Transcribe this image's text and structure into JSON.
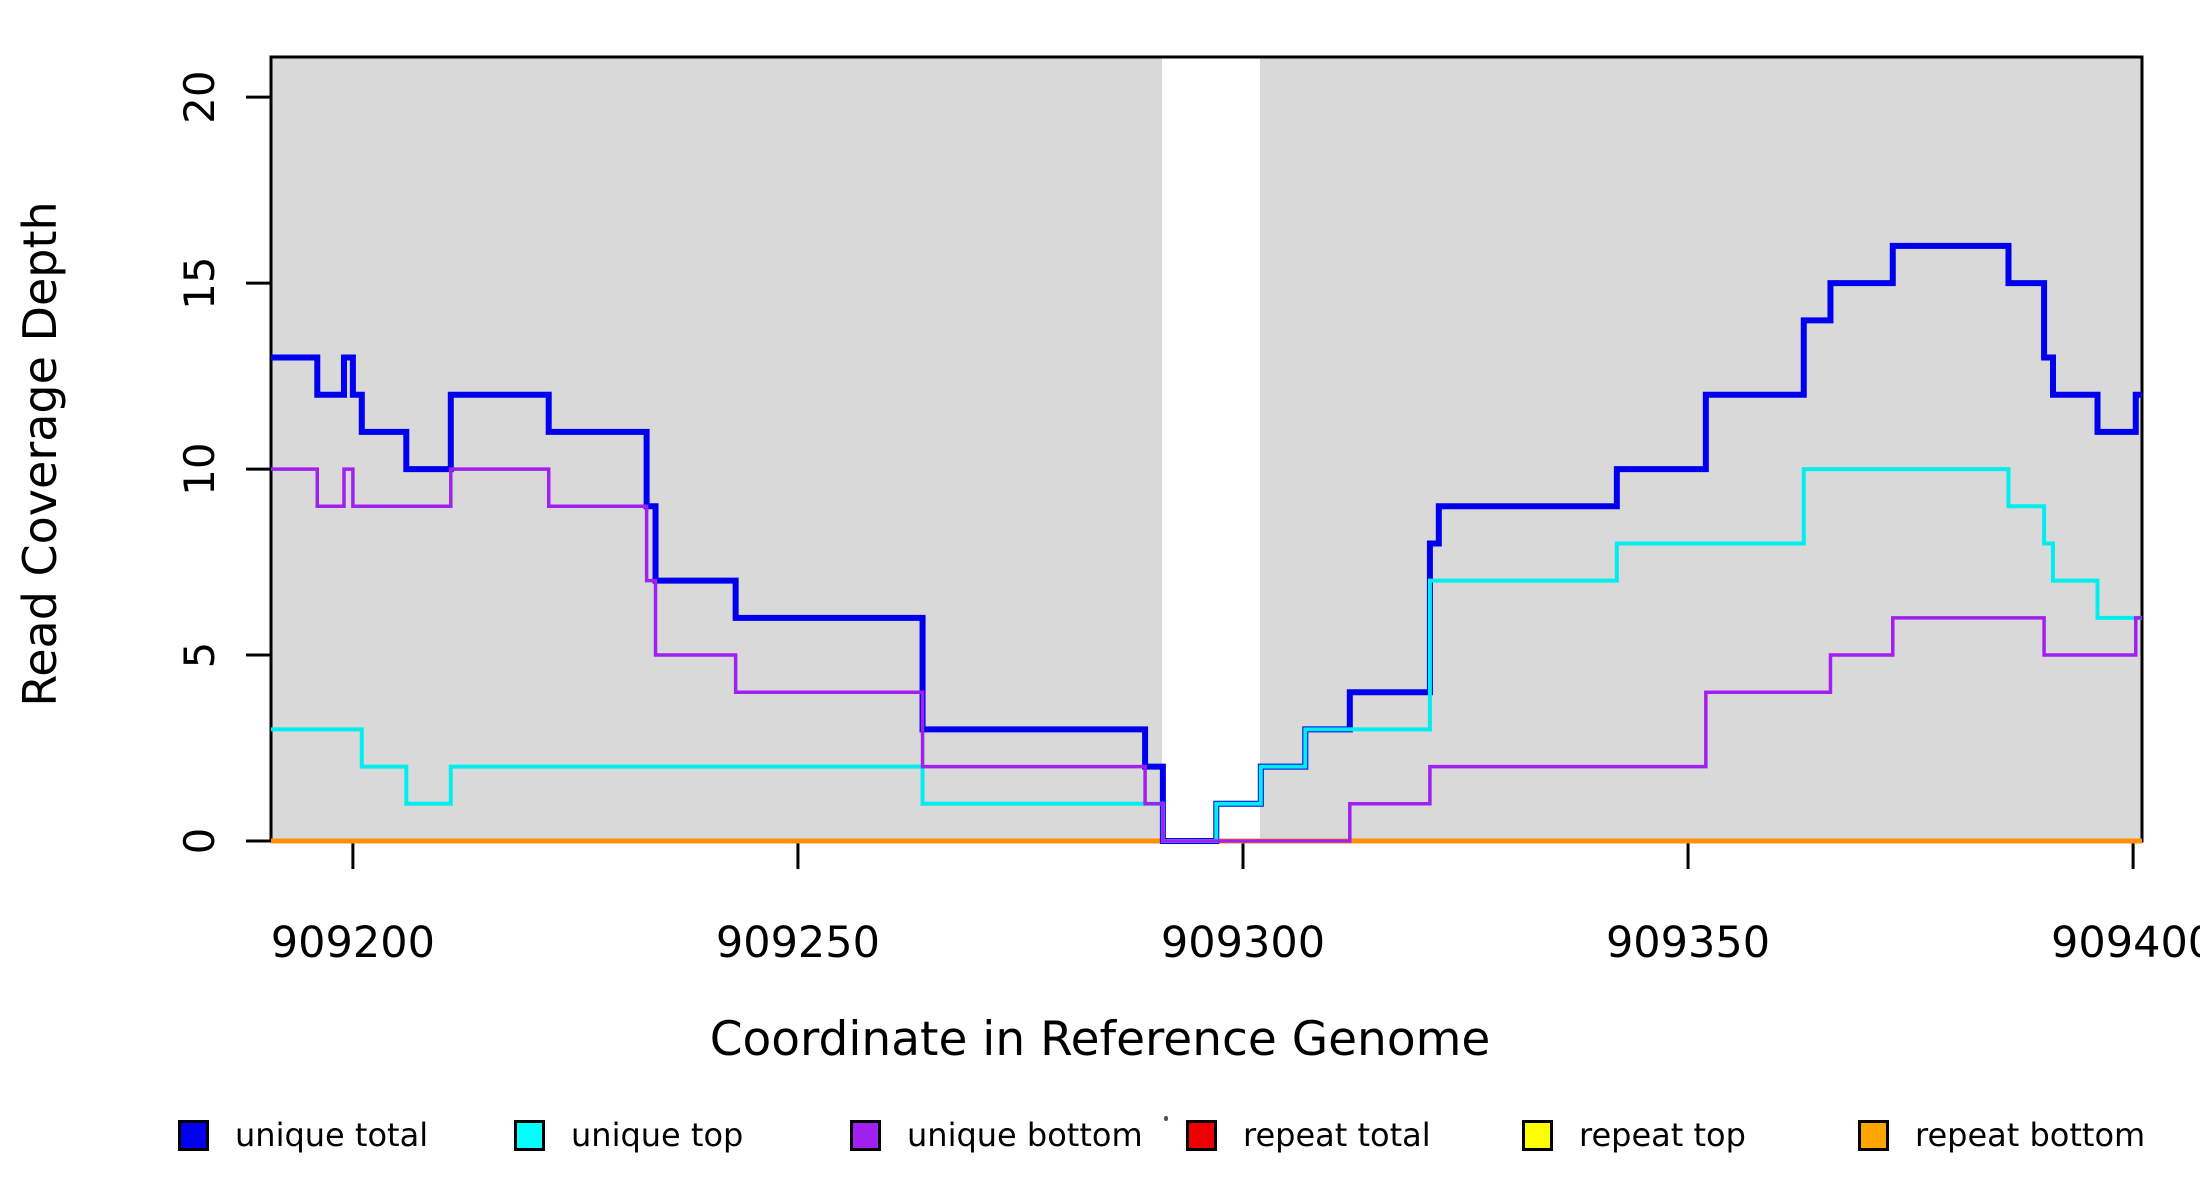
{
  "chart_data": {
    "type": "line",
    "subtype": "step-after",
    "title": "",
    "xlabel": "Coordinate in Reference Genome",
    "ylabel": "Read Coverage Depth",
    "xlim": [
      909190.8,
      909401
    ],
    "ylim": [
      0,
      21.08
    ],
    "x_ticks": [
      909200,
      909250,
      909300,
      909350,
      909400
    ],
    "y_ticks": [
      0,
      5,
      10,
      15,
      20
    ],
    "grid": false,
    "background_color": "#FFFFFF",
    "plot_shading": {
      "color": "#D9D9D9",
      "regions": [
        [
          909190.8,
          909290.9
        ],
        [
          909301.9,
          909401
        ]
      ]
    },
    "series": [
      {
        "name": "repeat total",
        "color": "#EE0000",
        "width": 5,
        "steps": [
          [
            909190.8,
            0
          ]
        ]
      },
      {
        "name": "repeat top",
        "color": "#FFFF00",
        "width": 5,
        "steps": [
          [
            909190.8,
            0
          ]
        ]
      },
      {
        "name": "repeat bottom",
        "color": "#FF9100",
        "width": 5,
        "steps": [
          [
            909190.8,
            0
          ]
        ]
      },
      {
        "name": "unique total",
        "color": "#0000EE",
        "width": 6,
        "steps": [
          [
            909190.8,
            13
          ],
          [
            909196,
            12
          ],
          [
            909199,
            13
          ],
          [
            909200,
            12
          ],
          [
            909201,
            11
          ],
          [
            909206,
            10
          ],
          [
            909211,
            12
          ],
          [
            909222,
            11
          ],
          [
            909233,
            9
          ],
          [
            909234,
            7
          ],
          [
            909243,
            6
          ],
          [
            909264,
            3
          ],
          [
            909289,
            2
          ],
          [
            909291,
            0
          ],
          [
            909297,
            1
          ],
          [
            909302,
            2
          ],
          [
            909307,
            3
          ],
          [
            909312,
            4
          ],
          [
            909321,
            8
          ],
          [
            909322,
            9
          ],
          [
            909342,
            10
          ],
          [
            909352,
            12
          ],
          [
            909363,
            14
          ],
          [
            909366,
            15
          ],
          [
            909373,
            16
          ],
          [
            909386,
            15
          ],
          [
            909390,
            13
          ],
          [
            909391,
            12
          ],
          [
            909396,
            11
          ],
          [
            909400.3,
            12
          ]
        ]
      },
      {
        "name": "unique top",
        "color": "#00EEEE",
        "width": 4,
        "steps": [
          [
            909190.8,
            3
          ],
          [
            909201,
            2
          ],
          [
            909206,
            1
          ],
          [
            909211,
            2
          ],
          [
            909264,
            1
          ],
          [
            909291,
            0
          ],
          [
            909297,
            1
          ],
          [
            909302,
            2
          ],
          [
            909307,
            3
          ],
          [
            909321,
            7
          ],
          [
            909342,
            8
          ],
          [
            909363,
            10
          ],
          [
            909386,
            9
          ],
          [
            909390,
            8
          ],
          [
            909391,
            7
          ],
          [
            909396,
            6
          ]
        ]
      },
      {
        "name": "unique bottom",
        "color": "#A020F0",
        "width": 3.5,
        "steps": [
          [
            909190.8,
            10
          ],
          [
            909196,
            9
          ],
          [
            909199,
            10
          ],
          [
            909200,
            9
          ],
          [
            909211,
            10
          ],
          [
            909222,
            9
          ],
          [
            909233,
            7
          ],
          [
            909234,
            5
          ],
          [
            909243,
            4
          ],
          [
            909264,
            2
          ],
          [
            909289,
            1
          ],
          [
            909291,
            0
          ],
          [
            909312,
            1
          ],
          [
            909321,
            2
          ],
          [
            909352,
            4
          ],
          [
            909366,
            5
          ],
          [
            909373,
            6
          ],
          [
            909390,
            5
          ],
          [
            909400.3,
            6
          ]
        ]
      }
    ],
    "legend": {
      "position": "bottom",
      "items": [
        {
          "label": "unique total",
          "color": "#0000EE"
        },
        {
          "label": "unique top",
          "color": "#00FFFF"
        },
        {
          "label": "unique bottom",
          "color": "#A020F0"
        },
        {
          "label": "repeat total",
          "color": "#EE0000"
        },
        {
          "label": "repeat top",
          "color": "#FFFF00"
        },
        {
          "label": "repeat bottom",
          "color": "#FFA500"
        }
      ]
    }
  }
}
